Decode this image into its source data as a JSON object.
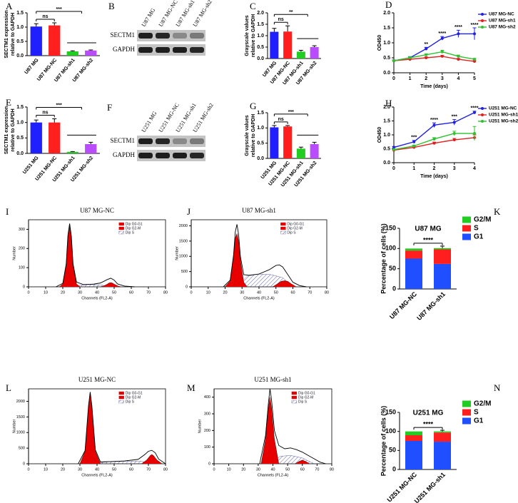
{
  "chart_data": [
    {
      "label": "A",
      "type": "bar",
      "ylabel": [
        "SECTM1 expression",
        "relative to GAPDH"
      ],
      "categories": [
        "U87 MG",
        "U87 MG-NC",
        "U87 MG-sh1",
        "U87 MG-sh2"
      ],
      "values": [
        1.02,
        1.06,
        0.15,
        0.18
      ],
      "errors": [
        0.1,
        0.09,
        0.02,
        0.02
      ],
      "colors": [
        "#1f1fff",
        "#ff1f1f",
        "#22cc22",
        "#b94cff"
      ],
      "ylim": [
        0,
        1.5
      ],
      "yticks": [
        {
          "value": 0,
          "label": "0.0"
        },
        {
          "value": 0.5,
          "label": "0.5"
        },
        {
          "value": 1,
          "label": "1.0"
        },
        {
          "value": 1.5,
          "label": "1.5"
        }
      ],
      "annotations": [
        "ns",
        "***"
      ]
    },
    {
      "label": "C",
      "type": "bar",
      "ylabel": [
        "Grayscale values",
        "relative to GAPDH"
      ],
      "categories": [
        "U87 MG",
        "U87 MG-NC",
        "U87 MG-sh1",
        "U87 MG-sh2"
      ],
      "values": [
        1.17,
        1.18,
        0.3,
        0.5
      ],
      "errors": [
        0.15,
        0.25,
        0.06,
        0.06
      ],
      "colors": [
        "#1f1fff",
        "#ff1f1f",
        "#22cc22",
        "#b94cff"
      ],
      "ylim": [
        0,
        2
      ],
      "yticks": [
        {
          "value": 0,
          "label": "0.0"
        },
        {
          "value": 0.5,
          "label": "0.5"
        },
        {
          "value": 1,
          "label": "1.0"
        },
        {
          "value": 1.5,
          "label": "1.5"
        },
        {
          "value": 2,
          "label": "2.0"
        }
      ],
      "annotations": [
        "ns",
        "**"
      ]
    },
    {
      "label": "D",
      "type": "line",
      "xlabel": "Time (days)",
      "ylabel": [
        "OD450"
      ],
      "x": [
        0,
        1,
        2,
        3,
        4,
        5
      ],
      "xlim": [
        0,
        5
      ],
      "xticks": [
        0,
        1,
        2,
        3,
        4,
        5
      ],
      "ylim": [
        0,
        2
      ],
      "yticks": [
        {
          "value": 0,
          "label": "0.0"
        },
        {
          "value": 0.5,
          "label": "0.5"
        },
        {
          "value": 1,
          "label": "1.0"
        },
        {
          "value": 1.5,
          "label": "1.5"
        },
        {
          "value": 2,
          "label": "2.0"
        }
      ],
      "series": [
        {
          "name": "U87 MG-NC",
          "color": "#2020e0",
          "values": [
            0.4,
            0.5,
            0.8,
            1.15,
            1.3,
            1.3
          ],
          "errors": [
            0.03,
            0.04,
            0.05,
            0.06,
            0.12,
            0.2
          ]
        },
        {
          "name": "U87 MG-sh1",
          "color": "#e02020",
          "values": [
            0.4,
            0.45,
            0.5,
            0.55,
            0.45,
            0.38
          ],
          "errors": [
            0.02,
            0.02,
            0.03,
            0.03,
            0.03,
            0.03
          ]
        },
        {
          "name": "U87 MG-sh2",
          "color": "#30c030",
          "values": [
            0.4,
            0.5,
            0.6,
            0.7,
            0.55,
            0.45
          ],
          "errors": [
            0.02,
            0.03,
            0.03,
            0.05,
            0.04,
            0.03
          ]
        }
      ],
      "annotations": [
        "**",
        "****",
        "****",
        "****"
      ]
    },
    {
      "label": "E",
      "type": "bar",
      "ylabel": [
        "SECTM1 expression",
        "relative to GAPDH"
      ],
      "categories": [
        "U251 MG",
        "U251 MG-NC",
        "U251 MG-sh1",
        "U251 MG-sh2"
      ],
      "values": [
        1.0,
        1.0,
        0.05,
        0.3
      ],
      "errors": [
        0.08,
        0.12,
        0.01,
        0.06
      ],
      "colors": [
        "#1f1fff",
        "#ff1f1f",
        "#22cc22",
        "#b94cff"
      ],
      "ylim": [
        0,
        1.5
      ],
      "yticks": [
        {
          "value": 0,
          "label": "0.0"
        },
        {
          "value": 0.5,
          "label": "0.5"
        },
        {
          "value": 1,
          "label": "1.0"
        },
        {
          "value": 1.5,
          "label": "1.5"
        }
      ],
      "annotations": [
        "ns",
        "***"
      ]
    },
    {
      "label": "G",
      "type": "bar",
      "ylabel": [
        "Grayscale values",
        "relative to GAPDH"
      ],
      "categories": [
        "U251 MG",
        "U251 MG-NC",
        "U251 MG-sh1",
        "U251 MG-sh2"
      ],
      "values": [
        1.02,
        1.05,
        0.32,
        0.47
      ],
      "errors": [
        0.06,
        0.03,
        0.05,
        0.06
      ],
      "colors": [
        "#1f1fff",
        "#ff1f1f",
        "#22cc22",
        "#b94cff"
      ],
      "ylim": [
        0,
        1.5
      ],
      "yticks": [
        {
          "value": 0,
          "label": "0.0"
        },
        {
          "value": 0.5,
          "label": "0.5"
        },
        {
          "value": 1,
          "label": "1.0"
        },
        {
          "value": 1.5,
          "label": "1.5"
        }
      ],
      "annotations": [
        "ns",
        "***"
      ]
    },
    {
      "label": "H",
      "type": "line",
      "xlabel": "Time (days)",
      "ylabel": [
        "OD450"
      ],
      "x": [
        0,
        1,
        2,
        3,
        4
      ],
      "xlim": [
        0,
        4
      ],
      "xticks": [
        0,
        1,
        2,
        3,
        4
      ],
      "ylim": [
        0,
        2
      ],
      "yticks": [
        {
          "value": 0,
          "label": "0.0"
        },
        {
          "value": 0.5,
          "label": "0.5"
        },
        {
          "value": 1,
          "label": "1.0"
        },
        {
          "value": 1.5,
          "label": "1.5"
        },
        {
          "value": 2,
          "label": "2.0"
        }
      ],
      "series": [
        {
          "name": "U251 MG-NC",
          "color": "#2020e0",
          "values": [
            0.55,
            0.75,
            1.35,
            1.45,
            1.8
          ],
          "errors": [
            0.03,
            0.05,
            0.08,
            0.1,
            0.05
          ]
        },
        {
          "name": "U251 MG-sh1",
          "color": "#e02020",
          "values": [
            0.45,
            0.55,
            0.7,
            0.82,
            0.9
          ],
          "errors": [
            0.02,
            0.03,
            0.04,
            0.05,
            0.1
          ]
        },
        {
          "name": "U251 MG-sh2",
          "color": "#30c030",
          "values": [
            0.47,
            0.6,
            0.85,
            1.05,
            1.05
          ],
          "errors": [
            0.02,
            0.03,
            0.05,
            0.08,
            0.25
          ]
        }
      ],
      "annotations": [
        "***",
        "****",
        "***",
        "****"
      ]
    },
    {
      "label": "I",
      "type": "area",
      "title": "U87 MG-NC",
      "xlabel": "Channels (FL2-A)",
      "ylabel": [
        "Number"
      ],
      "xlim": [
        0,
        80
      ],
      "xticks": [
        0,
        10,
        20,
        30,
        40,
        50,
        60,
        70,
        80
      ],
      "ylim": [
        0,
        350
      ],
      "yticks": [
        0,
        100,
        200,
        300
      ],
      "series": [
        {
          "name": "Dip G0-G1",
          "color": "#e60000",
          "fill": "solid",
          "x": [
            18,
            20,
            22,
            23,
            24,
            25,
            26,
            28,
            30
          ],
          "values": [
            0,
            15,
            110,
            250,
            320,
            250,
            110,
            15,
            0
          ]
        },
        {
          "name": "Dip G2-M",
          "color": "#e60000",
          "fill": "solid",
          "x": [
            42,
            44,
            46,
            47,
            48,
            49,
            50,
            52,
            54
          ],
          "values": [
            0,
            5,
            14,
            20,
            22,
            20,
            14,
            5,
            0
          ]
        },
        {
          "name": "Dip S",
          "color": "#3b3b8f",
          "fill": "hatch",
          "x": [
            24,
            30,
            36,
            42,
            48
          ],
          "values": [
            0,
            8,
            12,
            10,
            0
          ]
        },
        {
          "color": "#000000",
          "fill": "none",
          "x": [
            16,
            20,
            22,
            23,
            24,
            25,
            26,
            28,
            32,
            38,
            42,
            46,
            48,
            50,
            52,
            56,
            62
          ],
          "values": [
            0,
            18,
            120,
            270,
            330,
            265,
            120,
            25,
            12,
            14,
            20,
            38,
            45,
            35,
            15,
            4,
            0
          ]
        }
      ]
    },
    {
      "label": "J",
      "type": "area",
      "title": "U87 MG-sh1",
      "xlabel": "Channels (FL2-A)",
      "ylabel": [
        "Number"
      ],
      "xlim": [
        0,
        80
      ],
      "xticks": [
        0,
        10,
        20,
        30,
        40,
        50,
        60,
        70,
        80
      ],
      "ylim": [
        0,
        2200
      ],
      "yticks": [
        0,
        500,
        1000,
        1500,
        2000
      ],
      "series": [
        {
          "name": "Dip G0-G1",
          "color": "#e60000",
          "fill": "solid",
          "x": [
            20,
            23,
            25,
            26,
            27,
            28,
            29,
            31,
            33
          ],
          "values": [
            0,
            200,
            1000,
            1600,
            1750,
            1500,
            900,
            150,
            0
          ]
        },
        {
          "name": "Dip G2-M",
          "color": "#e60000",
          "fill": "solid",
          "x": [
            48,
            51,
            53,
            55,
            57,
            59,
            62
          ],
          "values": [
            0,
            100,
            180,
            200,
            180,
            100,
            0
          ]
        },
        {
          "name": "Dip S",
          "color": "#3b3b8f",
          "fill": "hatch",
          "x": [
            27,
            33,
            40,
            47,
            54,
            60
          ],
          "values": [
            0,
            350,
            420,
            400,
            300,
            0
          ]
        },
        {
          "color": "#000000",
          "fill": "none",
          "x": [
            19,
            23,
            25,
            26,
            27,
            28,
            29,
            31,
            34,
            40,
            46,
            50,
            52,
            54,
            57,
            60,
            64,
            68
          ],
          "values": [
            0,
            220,
            1050,
            1800,
            2050,
            1700,
            1000,
            400,
            380,
            420,
            560,
            700,
            720,
            650,
            400,
            150,
            40,
            0
          ]
        }
      ]
    },
    {
      "label": "K",
      "type": "stacked_bar",
      "title": "U87 MG",
      "ylabel": [
        "Percentage of cells (%)"
      ],
      "categories": [
        "U87 MG-NC",
        "U87 MG-sh1"
      ],
      "ylim": [
        0,
        150
      ],
      "yticks": [
        0,
        50,
        100,
        150
      ],
      "series": [
        {
          "name": "G1",
          "color": "#1f4fff",
          "values": [
            75,
            62
          ],
          "errors": [
            5,
            8
          ]
        },
        {
          "name": "S",
          "color": "#ff1f1f",
          "values": [
            20,
            36
          ],
          "errors": [
            3,
            8
          ]
        },
        {
          "name": "G2/M",
          "color": "#22cc22",
          "values": [
            5,
            3
          ]
        }
      ],
      "annotations": [
        "****"
      ]
    },
    {
      "label": "L",
      "type": "area",
      "title": "U251 MG-NC",
      "xlabel": "Channels (FL2-A)",
      "ylabel": [
        "Number"
      ],
      "xlim": [
        0,
        80
      ],
      "xticks": [
        0,
        10,
        20,
        30,
        40,
        50,
        60,
        70,
        80
      ],
      "ylim": [
        0,
        2400
      ],
      "yticks": [
        0,
        500,
        1000,
        1500,
        2000
      ],
      "series": [
        {
          "name": "Dip G0-G1",
          "color": "#e60000",
          "fill": "solid",
          "x": [
            30,
            33,
            35,
            36,
            37,
            39,
            42
          ],
          "values": [
            0,
            400,
            1800,
            2250,
            1800,
            400,
            0
          ]
        },
        {
          "name": "Dip G2-M",
          "color": "#e60000",
          "fill": "solid",
          "x": [
            66,
            69,
            71,
            72,
            73,
            75,
            78
          ],
          "values": [
            0,
            120,
            260,
            300,
            260,
            120,
            0
          ]
        },
        {
          "name": "Dip S",
          "color": "#3b3b8f",
          "fill": "hatch",
          "x": [
            36,
            46,
            56,
            66,
            72
          ],
          "values": [
            0,
            60,
            80,
            80,
            0
          ]
        },
        {
          "color": "#000000",
          "fill": "none",
          "x": [
            29,
            33,
            35,
            36,
            37,
            39,
            42,
            48,
            56,
            64,
            68,
            70,
            72,
            74,
            76,
            80
          ],
          "values": [
            0,
            420,
            1850,
            2300,
            1850,
            450,
            60,
            70,
            90,
            140,
            300,
            400,
            430,
            350,
            150,
            0
          ]
        }
      ]
    },
    {
      "label": "M",
      "type": "area",
      "title": "U251 MG-sh1",
      "xlabel": "Channels (FL2-A)",
      "ylabel": [
        "Number"
      ],
      "xlim": [
        0,
        80
      ],
      "xticks": [
        0,
        10,
        20,
        30,
        40,
        50,
        60,
        70,
        80
      ],
      "ylim": [
        0,
        450
      ],
      "yticks": [
        0,
        100,
        200,
        300,
        400
      ],
      "series": [
        {
          "name": "Dip G0-G1",
          "color": "#e60000",
          "fill": "solid",
          "x": [
            32,
            35,
            37,
            38,
            39,
            41,
            44
          ],
          "values": [
            0,
            150,
            340,
            400,
            340,
            150,
            0
          ]
        },
        {
          "name": "Dip G2-M",
          "color": "#e60000",
          "fill": "solid",
          "x": [
            55,
            58,
            60,
            62,
            65
          ],
          "values": [
            0,
            15,
            22,
            15,
            0
          ]
        },
        {
          "name": "Dip S",
          "color": "#3b3b8f",
          "fill": "hatch",
          "x": [
            38,
            45,
            52,
            60,
            68
          ],
          "values": [
            0,
            45,
            50,
            35,
            0
          ]
        },
        {
          "color": "#000000",
          "fill": "none",
          "x": [
            31,
            35,
            37,
            38,
            39,
            41,
            44,
            48,
            52,
            56,
            60,
            64,
            68,
            72,
            76
          ],
          "values": [
            0,
            170,
            370,
            450,
            390,
            200,
            110,
            90,
            95,
            85,
            70,
            50,
            30,
            10,
            0
          ]
        }
      ]
    },
    {
      "label": "N",
      "type": "stacked_bar",
      "title": "U251 MG",
      "ylabel": [
        "Percentage of cells (%)"
      ],
      "categories": [
        "U251 MG-NC",
        "U251 MG-sh1"
      ],
      "ylim": [
        0,
        150
      ],
      "yticks": [
        0,
        50,
        100,
        150
      ],
      "series": [
        {
          "name": "G1",
          "color": "#1f4fff",
          "values": [
            75,
            73
          ],
          "errors": [
            3,
            6
          ]
        },
        {
          "name": "S",
          "color": "#ff1f1f",
          "values": [
            15,
            24
          ],
          "errors": [
            3,
            6
          ]
        },
        {
          "name": "G2/M",
          "color": "#22cc22",
          "values": [
            10,
            3
          ]
        }
      ],
      "annotations": [
        "****"
      ]
    }
  ],
  "blots": [
    {
      "label": "B",
      "lanes": [
        "U87 MG",
        "U87 MG-NC",
        "U87 MG-sh1",
        "U87 MG-sh2"
      ],
      "rows": [
        "SECTM1",
        "GAPDH"
      ]
    },
    {
      "label": "F",
      "lanes": [
        "U251 MG",
        "U251 MG-NC",
        "U251 MG-sh1",
        "U251 MG-sh2"
      ],
      "rows": [
        "SECTM1",
        "GAPDH"
      ]
    }
  ]
}
